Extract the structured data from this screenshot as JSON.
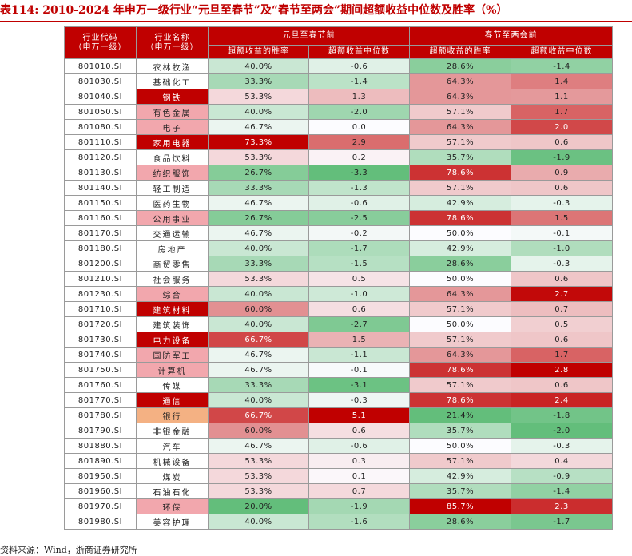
{
  "title": "表114:  2010-2024 年申万一级行业“元旦至春节”及“春节至两会”期间超额收益中位数及胜率（%）",
  "header": {
    "code_col": [
      "行业代码",
      "（申万一级）"
    ],
    "name_col": [
      "行业名称",
      "（申万一级）"
    ],
    "group1": "元旦至春节前",
    "group2": "春节至两会前",
    "sub": [
      "超额收益的胜率",
      "超额收益中位数",
      "超额收益的胜率",
      "超额收益中位数"
    ]
  },
  "rows": [
    {
      "code": "801010.SI",
      "name": "农林牧渔",
      "v": [
        "40.0%",
        "-0.6",
        "28.6%",
        "-1.4"
      ]
    },
    {
      "code": "801030.SI",
      "name": "基础化工",
      "v": [
        "33.3%",
        "-1.4",
        "64.3%",
        "1.4"
      ]
    },
    {
      "code": "801040.SI",
      "name": "钢铁",
      "v": [
        "53.3%",
        "1.3",
        "64.3%",
        "1.1"
      ]
    },
    {
      "code": "801050.SI",
      "name": "有色金属",
      "v": [
        "40.0%",
        "-2.0",
        "57.1%",
        "1.7"
      ]
    },
    {
      "code": "801080.SI",
      "name": "电子",
      "v": [
        "46.7%",
        "0.0",
        "64.3%",
        "2.0"
      ]
    },
    {
      "code": "801110.SI",
      "name": "家用电器",
      "v": [
        "73.3%",
        "2.9",
        "57.1%",
        "0.6"
      ]
    },
    {
      "code": "801120.SI",
      "name": "食品饮料",
      "v": [
        "53.3%",
        "0.2",
        "35.7%",
        "-1.9"
      ]
    },
    {
      "code": "801130.SI",
      "name": "纺织服饰",
      "v": [
        "26.7%",
        "-3.3",
        "78.6%",
        "0.9"
      ]
    },
    {
      "code": "801140.SI",
      "name": "轻工制造",
      "v": [
        "33.3%",
        "-1.3",
        "57.1%",
        "0.6"
      ]
    },
    {
      "code": "801150.SI",
      "name": "医药生物",
      "v": [
        "46.7%",
        "-0.6",
        "42.9%",
        "-0.3"
      ]
    },
    {
      "code": "801160.SI",
      "name": "公用事业",
      "v": [
        "26.7%",
        "-2.5",
        "78.6%",
        "1.5"
      ]
    },
    {
      "code": "801170.SI",
      "name": "交通运输",
      "v": [
        "46.7%",
        "-0.2",
        "50.0%",
        "-0.1"
      ]
    },
    {
      "code": "801180.SI",
      "name": "房地产",
      "v": [
        "40.0%",
        "-1.7",
        "42.9%",
        "-1.0"
      ]
    },
    {
      "code": "801200.SI",
      "name": "商贸零售",
      "v": [
        "33.3%",
        "-1.5",
        "28.6%",
        "-0.3"
      ]
    },
    {
      "code": "801210.SI",
      "name": "社会服务",
      "v": [
        "53.3%",
        "0.5",
        "50.0%",
        "0.6"
      ]
    },
    {
      "code": "801230.SI",
      "name": "综合",
      "v": [
        "40.0%",
        "-1.0",
        "64.3%",
        "2.7"
      ]
    },
    {
      "code": "801710.SI",
      "name": "建筑材料",
      "v": [
        "60.0%",
        "0.6",
        "57.1%",
        "0.7"
      ]
    },
    {
      "code": "801720.SI",
      "name": "建筑装饰",
      "v": [
        "40.0%",
        "-2.7",
        "50.0%",
        "0.5"
      ]
    },
    {
      "code": "801730.SI",
      "name": "电力设备",
      "v": [
        "66.7%",
        "1.5",
        "57.1%",
        "0.6"
      ]
    },
    {
      "code": "801740.SI",
      "name": "国防军工",
      "v": [
        "46.7%",
        "-1.1",
        "64.3%",
        "1.7"
      ]
    },
    {
      "code": "801750.SI",
      "name": "计算机",
      "v": [
        "46.7%",
        "-0.1",
        "78.6%",
        "2.8"
      ]
    },
    {
      "code": "801760.SI",
      "name": "传媒",
      "v": [
        "33.3%",
        "-3.1",
        "57.1%",
        "0.6"
      ]
    },
    {
      "code": "801770.SI",
      "name": "通信",
      "v": [
        "40.0%",
        "-0.3",
        "78.6%",
        "2.4"
      ]
    },
    {
      "code": "801780.SI",
      "name": "银行",
      "v": [
        "66.7%",
        "5.1",
        "21.4%",
        "-1.8"
      ]
    },
    {
      "code": "801790.SI",
      "name": "非银金融",
      "v": [
        "60.0%",
        "0.6",
        "35.7%",
        "-2.0"
      ]
    },
    {
      "code": "801880.SI",
      "name": "汽车",
      "v": [
        "46.7%",
        "-0.6",
        "50.0%",
        "-0.3"
      ]
    },
    {
      "code": "801890.SI",
      "name": "机械设备",
      "v": [
        "53.3%",
        "0.3",
        "57.1%",
        "0.4"
      ]
    },
    {
      "code": "801950.SI",
      "name": "煤炭",
      "v": [
        "53.3%",
        "0.1",
        "42.9%",
        "-0.9"
      ]
    },
    {
      "code": "801960.SI",
      "name": "石油石化",
      "v": [
        "53.3%",
        "0.7",
        "35.7%",
        "-1.4"
      ]
    },
    {
      "code": "801970.SI",
      "name": "环保",
      "v": [
        "20.0%",
        "-1.9",
        "85.7%",
        "2.3"
      ]
    },
    {
      "code": "801980.SI",
      "name": "美容护理",
      "v": [
        "40.0%",
        "-1.6",
        "28.6%",
        "-1.7"
      ]
    }
  ],
  "footer": "资料来源：Wind，浙商证券研究所",
  "colors": {
    "header_bg": "#c00000",
    "green_max": "#63be7b",
    "neutral": "#fcfcff",
    "red_max": "#c00000",
    "name_highlight_red": "#c00000",
    "name_highlight_pink": "#f2a7ad",
    "name_highlight_orange": "#f4b183"
  }
}
